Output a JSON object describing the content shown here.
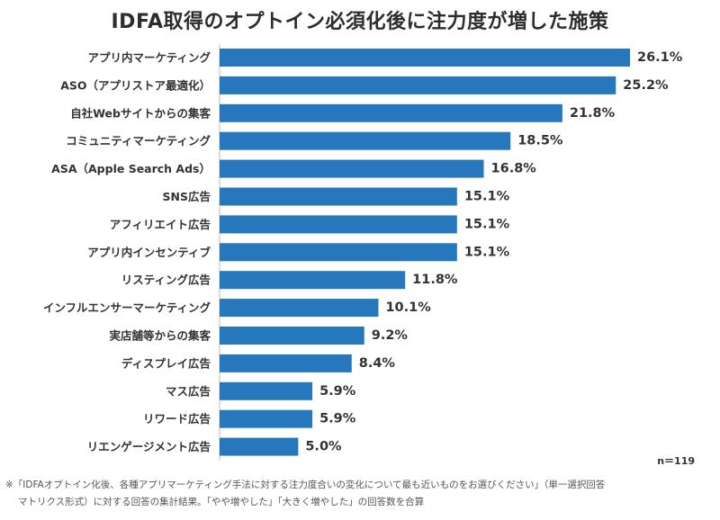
{
  "chart_data": {
    "type": "bar",
    "orientation": "horizontal",
    "title": "IDFA取得のオプトイン必須化後に注力度が増した施策",
    "categories": [
      "アプリ内マーケティング",
      "ASO（アプリストア最適化）",
      "自社Webサイトからの集客",
      "コミュニティマーケティング",
      "ASA（Apple Search Ads）",
      "SNS広告",
      "アフィリエイト広告",
      "アプリ内インセンティブ",
      "リスティング広告",
      "インフルエンサーマーケティング",
      "実店舗等からの集客",
      "ディスプレイ広告",
      "マス広告",
      "リワード広告",
      "リエンゲージメント広告"
    ],
    "values": [
      26.1,
      25.2,
      21.8,
      18.5,
      16.8,
      15.1,
      15.1,
      15.1,
      11.8,
      10.1,
      9.2,
      8.4,
      5.9,
      5.9,
      5.0
    ],
    "value_labels": [
      "26.1%",
      "25.2%",
      "21.8%",
      "18.5%",
      "16.8%",
      "15.1%",
      "15.1%",
      "15.1%",
      "11.8%",
      "10.1%",
      "9.2%",
      "8.4%",
      "5.9%",
      "5.9%",
      "5.0%"
    ],
    "unit": "%",
    "xlim": [
      0,
      26.1
    ],
    "grid": false,
    "bar_color": "#2777bc",
    "xlabel": "",
    "ylabel": ""
  },
  "sample_size": "n＝119",
  "footnote": {
    "line1": "※「IDFAオプトイン化後、各種アプリマーケティング手法に対する注力度合いの変化について最も近いものをお選びください」（単一選択回答",
    "line2": "マトリクス形式）に対する回答の集計結果。「やや増やした」「大きく増やした」の回答数を合算"
  }
}
